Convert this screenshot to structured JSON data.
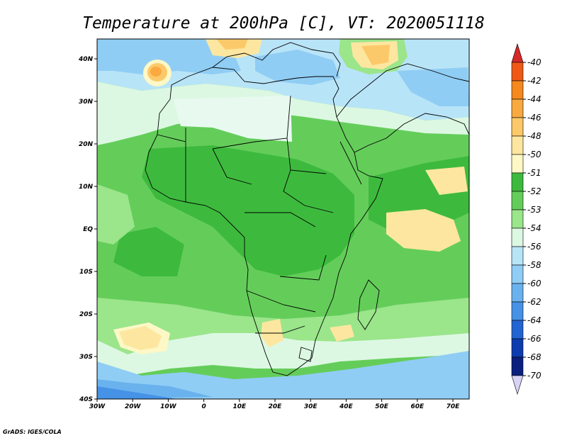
{
  "title": "Temperature at 200hPa [C], VT: 2020051118",
  "credit": "GrADS: IGES/COLA",
  "lat_labels": [
    "40N",
    "30N",
    "20N",
    "10N",
    "EQ",
    "10S",
    "20S",
    "30S",
    "40S"
  ],
  "lon_labels": [
    "30W",
    "20W",
    "10W",
    "0",
    "10E",
    "20E",
    "30E",
    "40E",
    "50E",
    "60E",
    "70E"
  ],
  "colorbar": {
    "labels": [
      "-40",
      "-42",
      "-44",
      "-46",
      "-48",
      "-50",
      "-51",
      "-52",
      "-53",
      "-54",
      "-56",
      "-58",
      "-60",
      "-62",
      "-64",
      "-66",
      "-68",
      "-70"
    ],
    "colors": [
      "#d62828",
      "#ee5a16",
      "#f5881e",
      "#f9a940",
      "#fcc96a",
      "#fde7a0",
      "#fdf8c6",
      "#3dba3d",
      "#64cd5a",
      "#9be58b",
      "#dcf8e2",
      "#b8e4f8",
      "#90cdf4",
      "#6ab2ee",
      "#4592e6",
      "#2264d2",
      "#0c3cae",
      "#0a1f7e",
      "#d8d2f6"
    ]
  }
}
